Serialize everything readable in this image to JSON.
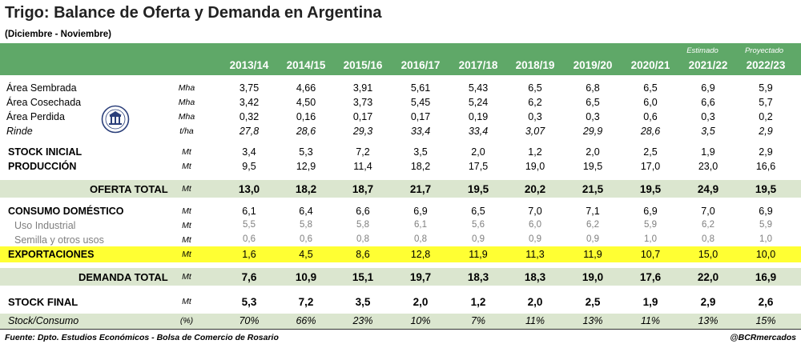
{
  "title": "Trigo: Balance de Oferta y Demanda en Argentina",
  "subtitle": "(Diciembre - Noviembre)",
  "header": {
    "years": [
      "2013/14",
      "2014/15",
      "2015/16",
      "2016/17",
      "2017/18",
      "2018/19",
      "2019/20",
      "2020/21",
      "2021/22",
      "2022/23"
    ],
    "notes": [
      "",
      "",
      "",
      "",
      "",
      "",
      "",
      "",
      "Estimado",
      "Proyectado"
    ]
  },
  "rows": [
    {
      "label": "Área Sembrada",
      "unit": "Mha",
      "values": [
        "3,75",
        "4,66",
        "3,91",
        "5,61",
        "5,43",
        "6,5",
        "6,8",
        "6,5",
        "6,9",
        "5,9"
      ]
    },
    {
      "label": "Área Cosechada",
      "unit": "Mha",
      "values": [
        "3,42",
        "4,50",
        "3,73",
        "5,45",
        "5,24",
        "6,2",
        "6,5",
        "6,0",
        "6,6",
        "5,7"
      ]
    },
    {
      "label": "Área Perdida",
      "unit": "Mha",
      "values": [
        "0,32",
        "0,16",
        "0,17",
        "0,17",
        "0,19",
        "0,3",
        "0,3",
        "0,6",
        "0,3",
        "0,2"
      ]
    },
    {
      "label": "Rinde",
      "unit": "t/ha",
      "values": [
        "27,8",
        "28,6",
        "29,3",
        "33,4",
        "33,4",
        "3,07",
        "29,9",
        "28,6",
        "3,5",
        "2,9"
      ]
    },
    {
      "label": "STOCK INICIAL",
      "unit": "Mt",
      "values": [
        "3,4",
        "5,3",
        "7,2",
        "3,5",
        "2,0",
        "1,2",
        "2,0",
        "2,5",
        "1,9",
        "2,9"
      ]
    },
    {
      "label": "PRODUCCIÓN",
      "unit": "Mt",
      "values": [
        "9,5",
        "12,9",
        "11,4",
        "18,2",
        "17,5",
        "19,0",
        "19,5",
        "17,0",
        "23,0",
        "16,6"
      ]
    },
    {
      "label": "OFERTA TOTAL",
      "unit": "Mt",
      "values": [
        "13,0",
        "18,2",
        "18,7",
        "21,7",
        "19,5",
        "20,2",
        "21,5",
        "19,5",
        "24,9",
        "19,5"
      ]
    },
    {
      "label": "CONSUMO DOMÉSTICO",
      "unit": "Mt",
      "values": [
        "6,1",
        "6,4",
        "6,6",
        "6,9",
        "6,5",
        "7,0",
        "7,1",
        "6,9",
        "7,0",
        "6,9"
      ]
    },
    {
      "label": "Uso Industrial",
      "unit": "Mt",
      "values": [
        "5,5",
        "5,8",
        "5,8",
        "6,1",
        "5,6",
        "6,0",
        "6,2",
        "5,9",
        "6,2",
        "5,9"
      ]
    },
    {
      "label": "Semilla y otros usos",
      "unit": "Mt",
      "values": [
        "0,6",
        "0,6",
        "0,8",
        "0,8",
        "0,9",
        "0,9",
        "0,9",
        "1,0",
        "0,8",
        "1,0"
      ]
    },
    {
      "label": "EXPORTACIONES",
      "unit": "Mt",
      "values": [
        "1,6",
        "4,5",
        "8,6",
        "12,8",
        "11,9",
        "11,3",
        "11,9",
        "10,7",
        "15,0",
        "10,0"
      ]
    },
    {
      "label": "DEMANDA TOTAL",
      "unit": "Mt",
      "values": [
        "7,6",
        "10,9",
        "15,1",
        "19,7",
        "18,3",
        "18,3",
        "19,0",
        "17,6",
        "22,0",
        "16,9"
      ]
    },
    {
      "label": "STOCK FINAL",
      "unit": "Mt",
      "values": [
        "5,3",
        "7,2",
        "3,5",
        "2,0",
        "1,2",
        "2,0",
        "2,5",
        "1,9",
        "2,9",
        "2,6"
      ]
    },
    {
      "label": "Stock/Consumo",
      "unit": "(%)",
      "values": [
        "70%",
        "66%",
        "23%",
        "10%",
        "7%",
        "11%",
        "13%",
        "11%",
        "13%",
        "15%"
      ]
    }
  ],
  "footer": {
    "source": "Fuente: Dpto. Estudios Económicos - Bolsa de Comercio de Rosario",
    "handle": "@BCRmercados"
  },
  "colors": {
    "header": "#5fa868",
    "band": "#dbe6cf",
    "highlight": "#ffff33"
  },
  "logo_icon": "bolsa-de-comercio-seal"
}
